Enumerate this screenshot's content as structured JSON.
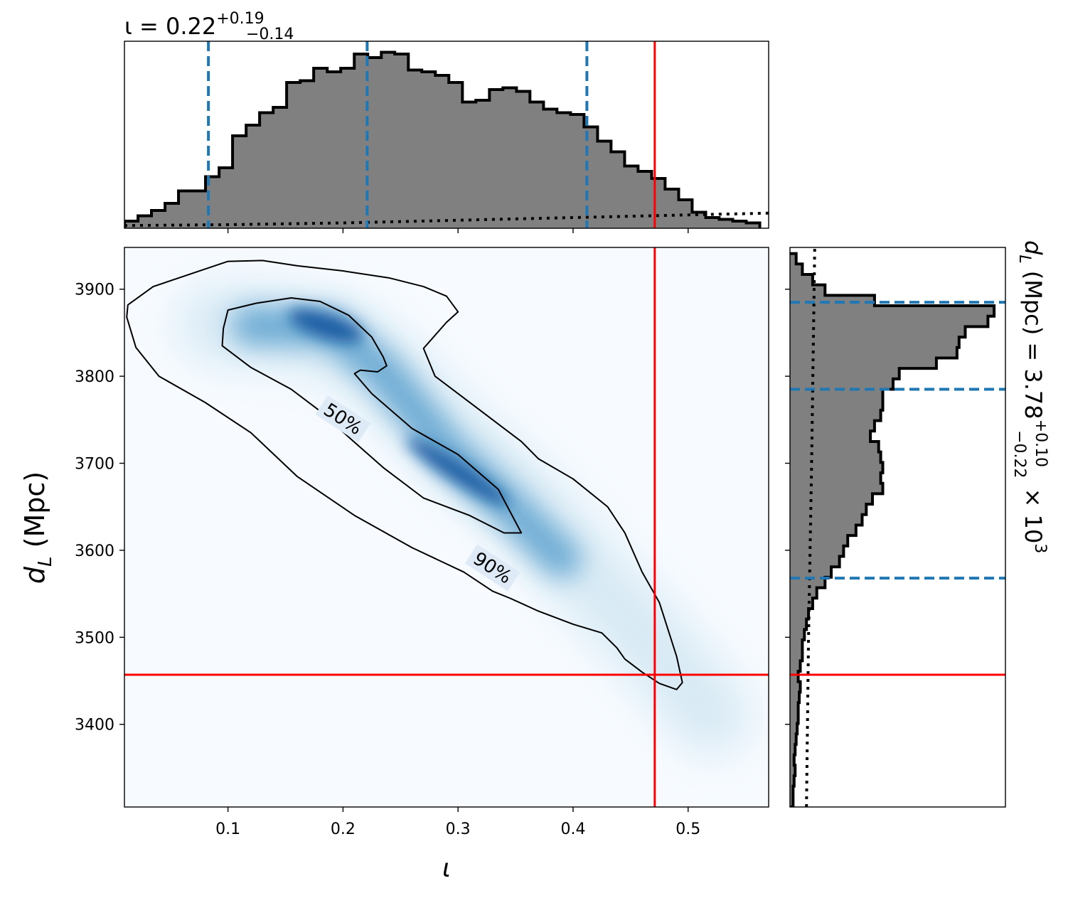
{
  "chart_data": [
    {
      "panel": "marginal-iota",
      "type": "histogram",
      "title": {
        "prefix": "ι = 0.22",
        "sup": "+0.19",
        "sub": "−0.14"
      },
      "xlim": [
        0.01,
        0.57
      ],
      "bin_edges": [
        0.01,
        0.0218,
        0.0335,
        0.0453,
        0.057,
        0.0688,
        0.0805,
        0.0923,
        0.104,
        0.1158,
        0.1275,
        0.1393,
        0.151,
        0.1628,
        0.1745,
        0.1863,
        0.198,
        0.2098,
        0.2215,
        0.2333,
        0.245,
        0.2568,
        0.2685,
        0.2803,
        0.292,
        0.3038,
        0.3155,
        0.3273,
        0.339,
        0.3508,
        0.3625,
        0.3743,
        0.386,
        0.3978,
        0.4095,
        0.4213,
        0.433,
        0.4448,
        0.4565,
        0.4683,
        0.48,
        0.4918,
        0.5035,
        0.5153,
        0.527,
        0.5388,
        0.5505,
        0.5623
      ],
      "density": [
        0.04,
        0.07,
        0.1,
        0.14,
        0.21,
        0.21,
        0.29,
        0.34,
        0.52,
        0.58,
        0.65,
        0.68,
        0.82,
        0.83,
        0.9,
        0.88,
        0.9,
        0.98,
        0.96,
        0.99,
        0.98,
        0.89,
        0.88,
        0.86,
        0.82,
        0.71,
        0.72,
        0.78,
        0.79,
        0.77,
        0.71,
        0.67,
        0.65,
        0.64,
        0.57,
        0.49,
        0.43,
        0.35,
        0.32,
        0.28,
        0.22,
        0.16,
        0.09,
        0.06,
        0.05,
        0.04,
        0.03
      ],
      "prior_dotted": {
        "x": [
          0.01,
          0.1,
          0.2,
          0.3,
          0.4,
          0.5,
          0.57
        ],
        "density": [
          0.015,
          0.02,
          0.03,
          0.045,
          0.06,
          0.075,
          0.085
        ]
      },
      "quantiles_dashed": [
        0.083,
        0.221,
        0.412
      ],
      "true_value": 0.471
    },
    {
      "panel": "joint-iota-dL",
      "type": "heatmap",
      "xlabel": "ι",
      "ylabel": "d_L (Mpc)",
      "xlim": [
        0.01,
        0.57
      ],
      "ylim": [
        3305,
        3948
      ],
      "xticks": [
        {
          "v": 0.1,
          "label": "0.1"
        },
        {
          "v": 0.2,
          "label": "0.2"
        },
        {
          "v": 0.3,
          "label": "0.3"
        },
        {
          "v": 0.4,
          "label": "0.4"
        },
        {
          "v": 0.5,
          "label": "0.5"
        }
      ],
      "yticks": [
        {
          "v": 3400,
          "label": "3400"
        },
        {
          "v": 3500,
          "label": "3500"
        },
        {
          "v": 3600,
          "label": "3600"
        },
        {
          "v": 3700,
          "label": "3700"
        },
        {
          "v": 3800,
          "label": "3800"
        },
        {
          "v": 3900,
          "label": "3900"
        }
      ],
      "contours": [
        {
          "label": "50%",
          "label_at": [
            0.2,
            3751
          ],
          "label_angle": 33,
          "points": [
            [
              0.125,
              3884
            ],
            [
              0.155,
              3890
            ],
            [
              0.18,
              3886
            ],
            [
              0.205,
              3870
            ],
            [
              0.225,
              3845
            ],
            [
              0.235,
              3822
            ],
            [
              0.238,
              3812
            ],
            [
              0.23,
              3805
            ],
            [
              0.215,
              3807
            ],
            [
              0.21,
              3803
            ],
            [
              0.225,
              3780
            ],
            [
              0.26,
              3740
            ],
            [
              0.3,
              3710
            ],
            [
              0.335,
              3670
            ],
            [
              0.355,
              3620
            ],
            [
              0.34,
              3620
            ],
            [
              0.31,
              3640
            ],
            [
              0.27,
              3660
            ],
            [
              0.235,
              3695
            ],
            [
              0.205,
              3730
            ],
            [
              0.18,
              3760
            ],
            [
              0.155,
              3785
            ],
            [
              0.12,
              3810
            ],
            [
              0.095,
              3835
            ],
            [
              0.096,
              3855
            ],
            [
              0.1,
              3876
            ]
          ]
        },
        {
          "label": "90%",
          "label_at": [
            0.33,
            3580
          ],
          "label_angle": 33,
          "points": [
            [
              0.013,
              3882
            ],
            [
              0.035,
              3903
            ],
            [
              0.1,
              3932
            ],
            [
              0.13,
              3933
            ],
            [
              0.16,
              3927
            ],
            [
              0.2,
              3921
            ],
            [
              0.24,
              3913
            ],
            [
              0.27,
              3903
            ],
            [
              0.29,
              3892
            ],
            [
              0.3,
              3874
            ],
            [
              0.29,
              3862
            ],
            [
              0.27,
              3832
            ],
            [
              0.28,
              3800
            ],
            [
              0.32,
              3760
            ],
            [
              0.355,
              3725
            ],
            [
              0.37,
              3705
            ],
            [
              0.4,
              3682
            ],
            [
              0.43,
              3650
            ],
            [
              0.445,
              3620
            ],
            [
              0.46,
              3575
            ],
            [
              0.475,
              3540
            ],
            [
              0.49,
              3478
            ],
            [
              0.495,
              3448
            ],
            [
              0.49,
              3440
            ],
            [
              0.475,
              3447
            ],
            [
              0.46,
              3460
            ],
            [
              0.445,
              3475
            ],
            [
              0.438,
              3488
            ],
            [
              0.425,
              3505
            ],
            [
              0.4,
              3515
            ],
            [
              0.37,
              3530
            ],
            [
              0.345,
              3545
            ],
            [
              0.33,
              3553
            ],
            [
              0.305,
              3575
            ],
            [
              0.26,
              3603
            ],
            [
              0.21,
              3640
            ],
            [
              0.16,
              3685
            ],
            [
              0.12,
              3735
            ],
            [
              0.08,
              3770
            ],
            [
              0.04,
              3800
            ],
            [
              0.02,
              3833
            ],
            [
              0.012,
              3868
            ]
          ]
        }
      ],
      "true_value": {
        "x": 0.471,
        "y": 3457
      }
    },
    {
      "panel": "marginal-dL",
      "type": "histogram",
      "orientation": "horizontal",
      "title": {
        "prefix": "d_L (Mpc) = 3.78",
        "sup": "+0.10",
        "sub": "−0.22",
        "suffix": " × 10³"
      },
      "ylim": [
        3305,
        3948
      ],
      "bin_edges": [
        3305,
        3317,
        3329,
        3341,
        3353,
        3365,
        3377,
        3389,
        3401,
        3413,
        3425,
        3437,
        3449,
        3461,
        3473,
        3485,
        3497,
        3509,
        3521,
        3533,
        3545,
        3557,
        3569,
        3581,
        3593,
        3605,
        3617,
        3629,
        3641,
        3653,
        3665,
        3677,
        3689,
        3701,
        3713,
        3725,
        3737,
        3749,
        3761,
        3773,
        3785,
        3797,
        3809,
        3821,
        3833,
        3845,
        3857,
        3869,
        3881,
        3893,
        3905,
        3917,
        3929,
        3941
      ],
      "density": [
        0.015,
        0.015,
        0.02,
        0.025,
        0.02,
        0.025,
        0.03,
        0.035,
        0.04,
        0.04,
        0.045,
        0.05,
        0.04,
        0.05,
        0.06,
        0.06,
        0.07,
        0.08,
        0.09,
        0.11,
        0.13,
        0.17,
        0.2,
        0.24,
        0.26,
        0.28,
        0.32,
        0.35,
        0.37,
        0.4,
        0.45,
        0.44,
        0.45,
        0.44,
        0.43,
        0.39,
        0.41,
        0.44,
        0.45,
        0.45,
        0.5,
        0.53,
        0.71,
        0.81,
        0.82,
        0.85,
        0.96,
        0.99,
        0.41,
        0.17,
        0.11,
        0.06,
        0.03
      ],
      "prior_dotted": {
        "y": [
          3305,
          3500,
          3700,
          3948
        ],
        "density": [
          0.08,
          0.09,
          0.105,
          0.12
        ]
      },
      "quantiles_dashed": [
        3568,
        3785,
        3885
      ],
      "true_value": 3457
    }
  ],
  "colors": {
    "hist_fill": "#808080",
    "quantile": "#1f77b4",
    "truth": "#ff0000",
    "contour": "#000000",
    "heat_low": "#f7fbff",
    "heat_high": "#08519c"
  }
}
